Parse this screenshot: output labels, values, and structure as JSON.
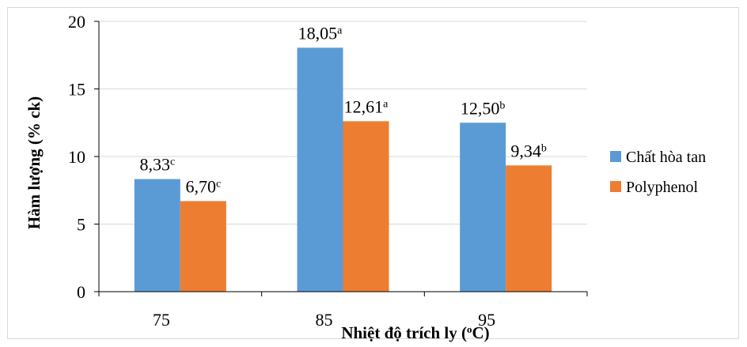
{
  "chart_data": {
    "type": "bar",
    "title": "",
    "xlabel": "Nhiệt độ trích ly (°C)",
    "xlabel_main": "Nhiệt độ trích ly (",
    "xlabel_sup": "o",
    "xlabel_tail": "C)",
    "ylabel": "Hàm lượng (% ck)",
    "ylim": [
      0,
      20
    ],
    "yticks": [
      0,
      5,
      10,
      15,
      20
    ],
    "categories": [
      "75",
      "85",
      "95"
    ],
    "legend_position": "right",
    "grid": true,
    "series": [
      {
        "name": "Chất hòa tan",
        "color": "#5b9bd5",
        "values": [
          8.33,
          18.05,
          12.5
        ],
        "labels": [
          "8,33",
          "18,05",
          "12,50"
        ],
        "letters": [
          "c",
          "a",
          "b"
        ]
      },
      {
        "name": "Polyphenol",
        "color": "#ed7d31",
        "values": [
          6.7,
          12.61,
          9.34
        ],
        "labels": [
          "6,70",
          "12,61",
          "9,34"
        ],
        "letters": [
          "c",
          "a",
          "b"
        ]
      }
    ]
  }
}
